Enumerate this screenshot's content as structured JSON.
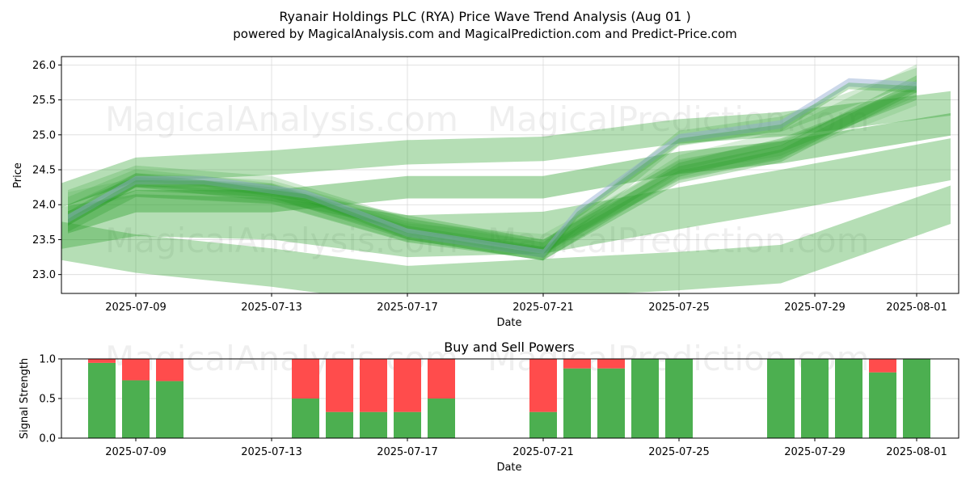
{
  "header": {
    "title": "Ryanair Holdings PLC (RYA) Price Wave Trend Analysis (Aug 01 )",
    "subtitle": "powered by MagicalAnalysis.com and MagicalPrediction.com and Predict-Price.com"
  },
  "watermarks": [
    "MagicalAnalysis.com",
    "MagicalPrediction.com"
  ],
  "colors": {
    "wave": "#2ca02c",
    "wave_alt": "#8fa8d0",
    "buy": "#4caf50",
    "sell": "#ff4c4c"
  },
  "chart_data": [
    {
      "type": "area",
      "title": "",
      "xlabel": "Date",
      "ylabel": "Price",
      "ylim": [
        22.73,
        26.12
      ],
      "xlim": [
        "2025-07-06",
        "2025-08-02"
      ],
      "yticks": [
        23.0,
        23.5,
        24.0,
        24.5,
        25.0,
        25.5,
        26.0
      ],
      "xticks": [
        "2025-07-09",
        "2025-07-13",
        "2025-07-17",
        "2025-07-21",
        "2025-07-25",
        "2025-07-29",
        "2025-08-01"
      ],
      "grid": true,
      "dates": [
        "2025-07-07",
        "2025-07-08",
        "2025-07-09",
        "2025-07-10",
        "2025-07-11",
        "2025-07-14",
        "2025-07-15",
        "2025-07-16",
        "2025-07-17",
        "2025-07-18",
        "2025-07-21",
        "2025-07-22",
        "2025-07-23",
        "2025-07-24",
        "2025-07-25",
        "2025-07-28",
        "2025-07-29",
        "2025-07-30",
        "2025-07-31",
        "2025-08-01"
      ],
      "price_path": [
        23.75,
        24.1,
        24.35,
        24.3,
        24.25,
        24.2,
        23.95,
        23.65,
        23.55,
        23.5,
        23.25,
        23.95,
        24.25,
        24.6,
        24.95,
        25.15,
        25.4,
        25.75,
        25.65,
        25.85
      ],
      "wave_bands": [
        {
          "x": [
            "2025-07-06",
            "2025-07-09",
            "2025-07-13",
            "2025-07-17",
            "2025-07-21",
            "2025-07-25",
            "2025-07-28",
            "2025-08-02"
          ],
          "y": [
            24.0,
            24.5,
            24.6,
            24.75,
            24.8,
            25.05,
            25.15,
            25.45
          ],
          "width": 0.35,
          "opacity": 0.35
        },
        {
          "x": [
            "2025-07-06",
            "2025-07-09",
            "2025-07-13",
            "2025-07-17",
            "2025-07-21",
            "2025-07-25",
            "2025-07-28",
            "2025-08-02"
          ],
          "y": [
            23.55,
            23.3,
            23.1,
            22.85,
            22.95,
            23.05,
            23.15,
            24.0
          ],
          "width": 0.55,
          "opacity": 0.35
        },
        {
          "x": [
            "2025-07-06",
            "2025-07-09",
            "2025-07-13",
            "2025-07-17",
            "2025-07-21",
            "2025-07-25",
            "2025-07-28",
            "2025-08-02"
          ],
          "y": [
            23.6,
            23.85,
            23.8,
            23.55,
            23.6,
            23.95,
            24.2,
            24.65
          ],
          "width": 0.6,
          "opacity": 0.35
        },
        {
          "x": [
            "2025-07-07",
            "2025-07-09",
            "2025-07-13",
            "2025-07-17",
            "2025-07-21",
            "2025-07-25",
            "2025-07-28",
            "2025-08-02"
          ],
          "y": [
            23.75,
            24.05,
            24.05,
            24.25,
            24.25,
            24.6,
            24.75,
            25.15
          ],
          "width": 0.32,
          "opacity": 0.4
        },
        {
          "x": [
            "2025-07-07",
            "2025-07-09",
            "2025-07-13",
            "2025-07-17",
            "2025-07-21",
            "2025-07-25",
            "2025-07-28",
            "2025-08-01"
          ],
          "y": [
            23.8,
            24.35,
            24.15,
            23.75,
            23.4,
            24.45,
            24.75,
            25.75
          ],
          "width": 0.2,
          "opacity": 0.3
        },
        {
          "x": [
            "2025-07-07",
            "2025-07-09",
            "2025-07-13",
            "2025-07-17",
            "2025-07-21",
            "2025-07-25",
            "2025-07-28",
            "2025-08-01"
          ],
          "y": [
            23.9,
            24.3,
            24.2,
            23.6,
            23.3,
            24.5,
            24.85,
            25.6
          ],
          "width": 0.2,
          "opacity": 0.3
        },
        {
          "x": [
            "2025-07-07",
            "2025-07-09",
            "2025-07-13",
            "2025-07-17",
            "2025-07-21",
            "2025-07-25",
            "2025-07-28",
            "2025-08-01"
          ],
          "y": [
            24.1,
            24.45,
            24.3,
            23.7,
            23.35,
            24.95,
            25.15,
            25.85
          ],
          "width": 0.22,
          "opacity": 0.22
        },
        {
          "x": [
            "2025-07-07",
            "2025-07-09",
            "2025-07-13",
            "2025-07-17",
            "2025-07-21",
            "2025-07-25",
            "2025-07-28",
            "2025-08-01"
          ],
          "y": [
            23.7,
            24.2,
            24.1,
            23.55,
            23.3,
            24.4,
            24.7,
            25.7
          ],
          "width": 0.18,
          "opacity": 0.3
        },
        {
          "x": [
            "2025-07-07",
            "2025-07-09",
            "2025-07-13",
            "2025-07-17",
            "2025-07-21",
            "2025-07-25",
            "2025-07-28",
            "2025-08-01"
          ],
          "y": [
            24.0,
            24.4,
            24.2,
            23.65,
            23.35,
            24.6,
            24.95,
            25.9
          ],
          "width": 0.22,
          "opacity": 0.18
        },
        {
          "x": [
            "2025-07-07",
            "2025-07-09",
            "2025-07-13",
            "2025-07-17",
            "2025-07-21",
            "2025-07-25",
            "2025-07-28",
            "2025-08-01"
          ],
          "y": [
            23.9,
            24.35,
            24.25,
            23.7,
            23.4,
            24.55,
            24.8,
            25.65
          ],
          "width": 0.2,
          "opacity": 0.2
        },
        {
          "x": [
            "2025-07-07",
            "2025-07-09",
            "2025-07-13",
            "2025-07-17",
            "2025-07-21",
            "2025-07-25",
            "2025-07-28",
            "2025-08-01"
          ],
          "y": [
            24.05,
            24.25,
            24.15,
            23.6,
            23.45,
            24.5,
            24.8,
            25.55
          ],
          "width": 0.26,
          "opacity": 0.15
        }
      ],
      "price_band": {
        "x": [
          "2025-07-07",
          "2025-07-09",
          "2025-07-11",
          "2025-07-14",
          "2025-07-17",
          "2025-07-21",
          "2025-07-22",
          "2025-07-23",
          "2025-07-25",
          "2025-07-28",
          "2025-07-30",
          "2025-08-01"
        ],
        "y": [
          23.8,
          24.35,
          24.35,
          24.15,
          23.6,
          23.3,
          23.9,
          24.25,
          24.95,
          25.15,
          25.75,
          25.7
        ],
        "width": 0.12,
        "opacity": 0.45
      }
    },
    {
      "type": "bar",
      "stacked": true,
      "title": "Buy and Sell Powers",
      "xlabel": "Date",
      "ylabel": "Signal Strength",
      "ylim": [
        0,
        1.0
      ],
      "yticks": [
        0.0,
        0.5,
        1.0
      ],
      "xticks": [
        "2025-07-09",
        "2025-07-13",
        "2025-07-17",
        "2025-07-21",
        "2025-07-25",
        "2025-07-29",
        "2025-08-01"
      ],
      "grid": true,
      "categories": [
        "2025-07-08",
        "2025-07-09",
        "2025-07-10",
        "2025-07-14",
        "2025-07-15",
        "2025-07-16",
        "2025-07-17",
        "2025-07-18",
        "2025-07-21",
        "2025-07-22",
        "2025-07-23",
        "2025-07-24",
        "2025-07-25",
        "2025-07-28",
        "2025-07-29",
        "2025-07-30",
        "2025-07-31",
        "2025-08-01"
      ],
      "series": [
        {
          "name": "Buy",
          "values": [
            0.95,
            0.73,
            0.72,
            0.5,
            0.33,
            0.33,
            0.33,
            0.5,
            0.33,
            0.88,
            0.88,
            1.0,
            1.0,
            1.0,
            1.0,
            1.0,
            0.83,
            1.0
          ]
        },
        {
          "name": "Sell",
          "values": [
            0.05,
            0.27,
            0.28,
            0.5,
            0.67,
            0.67,
            0.67,
            0.5,
            0.67,
            0.12,
            0.12,
            0.0,
            0.0,
            0.0,
            0.0,
            0.0,
            0.17,
            0.0
          ]
        }
      ]
    }
  ]
}
